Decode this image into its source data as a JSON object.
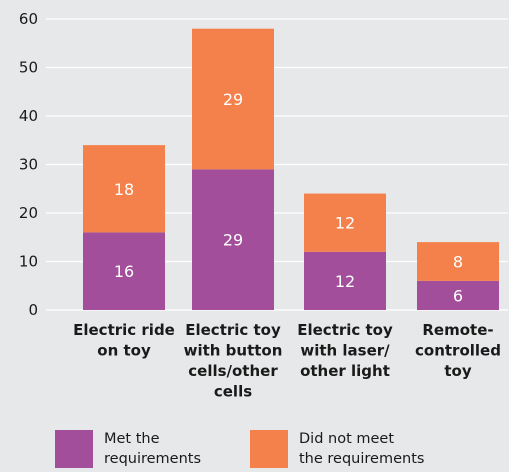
{
  "chart_data": {
    "type": "bar",
    "stacked": true,
    "categories": [
      [
        "Electric ride",
        "on toy"
      ],
      [
        "Electric toy",
        "with button",
        "cells/other",
        "cells"
      ],
      [
        "Electric toy",
        "with laser/",
        "other light"
      ],
      [
        "Remote-",
        "controlled",
        "toy"
      ]
    ],
    "series": [
      {
        "name": "Met the requirements",
        "legend_lines": [
          "Met the",
          "requirements"
        ],
        "values": [
          16,
          29,
          12,
          6
        ],
        "color": "#a24e9b"
      },
      {
        "name": "Did not meet the requirements",
        "legend_lines": [
          "Did not meet",
          "the requirements"
        ],
        "values": [
          18,
          29,
          12,
          8
        ],
        "color": "#f4814b"
      }
    ],
    "ylim": [
      0,
      60
    ],
    "yticks": [
      0,
      10,
      20,
      30,
      40,
      50,
      60
    ],
    "grid": true,
    "grid_color": "#ffffff",
    "background": "#e7e8e9",
    "label_color": "#ffffff",
    "legend_position": "bottom"
  }
}
